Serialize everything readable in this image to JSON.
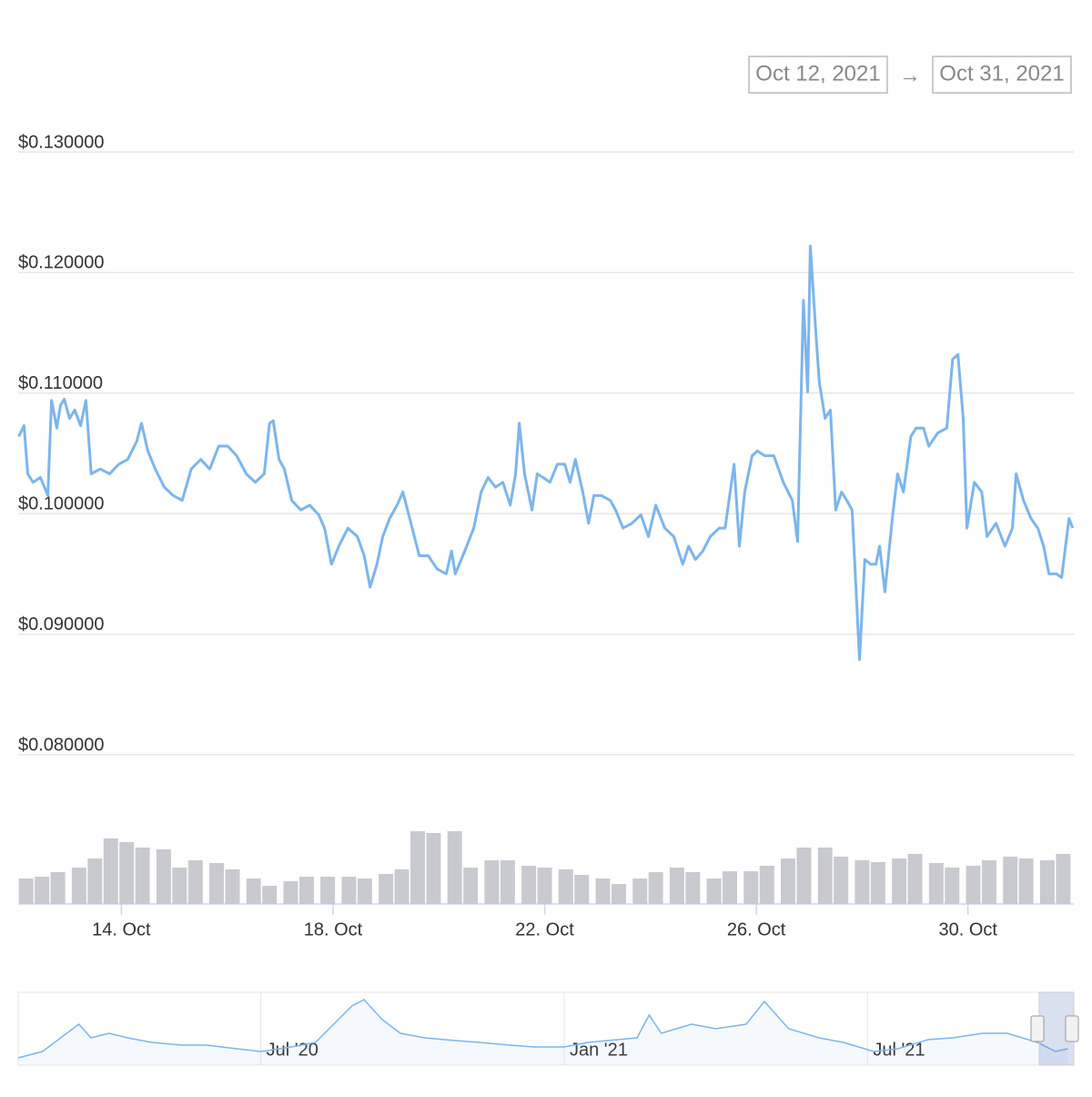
{
  "range": {
    "from": "Oct 12, 2021",
    "separator": "→",
    "to": "Oct 31, 2021"
  },
  "chart_data": [
    {
      "type": "line",
      "color": "#7cb5ec",
      "grid": true,
      "xlim": [
        12.05,
        32
      ],
      "ylim": [
        0.08,
        0.13
      ],
      "yticks": [
        {
          "value": 0.08,
          "label": "$0.080000"
        },
        {
          "value": 0.09,
          "label": "$0.090000"
        },
        {
          "value": 0.1,
          "label": "$0.100000"
        },
        {
          "value": 0.11,
          "label": "$0.110000"
        },
        {
          "value": 0.12,
          "label": "$0.120000"
        },
        {
          "value": 0.13,
          "label": "$0.130000"
        }
      ],
      "x": [
        12.06,
        12.16,
        12.23,
        12.33,
        12.47,
        12.61,
        12.68,
        12.78,
        12.85,
        12.92,
        13.02,
        13.12,
        13.23,
        13.33,
        13.43,
        13.6,
        13.78,
        13.95,
        14.12,
        14.29,
        14.38,
        14.5,
        14.64,
        14.81,
        14.98,
        15.15,
        15.32,
        15.5,
        15.67,
        15.84,
        16.01,
        16.18,
        16.36,
        16.53,
        16.7,
        16.8,
        16.87,
        16.98,
        17.08,
        17.22,
        17.39,
        17.56,
        17.73,
        17.84,
        17.97,
        18.11,
        18.28,
        18.46,
        18.59,
        18.7,
        18.83,
        18.94,
        19.07,
        19.21,
        19.32,
        19.45,
        19.63,
        19.8,
        19.97,
        20.14,
        20.24,
        20.31,
        20.49,
        20.66,
        20.8,
        20.93,
        21.07,
        21.21,
        21.35,
        21.45,
        21.52,
        21.62,
        21.76,
        21.86,
        21.97,
        22.1,
        22.24,
        22.38,
        22.48,
        22.58,
        22.72,
        22.83,
        22.93,
        23.07,
        23.24,
        23.34,
        23.48,
        23.65,
        23.82,
        23.96,
        24.1,
        24.27,
        24.44,
        24.61,
        24.72,
        24.85,
        24.99,
        25.13,
        25.3,
        25.41,
        25.58,
        25.68,
        25.78,
        25.92,
        26.02,
        26.16,
        26.33,
        26.51,
        26.68,
        26.78,
        26.89,
        26.97,
        27.02,
        27.13,
        27.19,
        27.3,
        27.4,
        27.5,
        27.61,
        27.71,
        27.81,
        27.95,
        28.05,
        28.16,
        28.26,
        28.33,
        28.43,
        28.57,
        28.67,
        28.78,
        28.92,
        29.02,
        29.16,
        29.26,
        29.43,
        29.6,
        29.71,
        29.81,
        29.91,
        29.98,
        30.12,
        30.26,
        30.36,
        30.53,
        30.7,
        30.84,
        30.91,
        31.05,
        31.19,
        31.32,
        31.43,
        31.53,
        31.67,
        31.77,
        31.91,
        31.98
      ],
      "values": [
        0.1064,
        0.1073,
        0.1033,
        0.1026,
        0.103,
        0.1015,
        0.1094,
        0.1071,
        0.109,
        0.1095,
        0.1079,
        0.1086,
        0.1073,
        0.1094,
        0.1033,
        0.1037,
        0.1033,
        0.1041,
        0.1045,
        0.106,
        0.1075,
        0.1052,
        0.1037,
        0.1022,
        0.1015,
        0.1011,
        0.1037,
        0.1045,
        0.1037,
        0.1056,
        0.1056,
        0.1048,
        0.1033,
        0.1026,
        0.1033,
        0.1075,
        0.1077,
        0.1045,
        0.1037,
        0.1011,
        0.1003,
        0.1007,
        0.0999,
        0.0988,
        0.0958,
        0.0973,
        0.0988,
        0.0981,
        0.0965,
        0.0939,
        0.0958,
        0.0981,
        0.0996,
        0.1007,
        0.1018,
        0.0996,
        0.0965,
        0.0965,
        0.0954,
        0.095,
        0.0969,
        0.095,
        0.0969,
        0.0988,
        0.1018,
        0.103,
        0.1022,
        0.1026,
        0.1007,
        0.1033,
        0.1075,
        0.1033,
        0.1003,
        0.1033,
        0.103,
        0.1026,
        0.1041,
        0.1041,
        0.1026,
        0.1045,
        0.1018,
        0.0992,
        0.1015,
        0.1015,
        0.1011,
        0.1003,
        0.0988,
        0.0992,
        0.0999,
        0.0981,
        0.1007,
        0.0988,
        0.0981,
        0.0958,
        0.0973,
        0.0962,
        0.0969,
        0.0981,
        0.0988,
        0.0988,
        0.1041,
        0.0973,
        0.1018,
        0.1048,
        0.1052,
        0.1048,
        0.1048,
        0.1026,
        0.1011,
        0.0977,
        0.1177,
        0.1101,
        0.1222,
        0.1147,
        0.1109,
        0.1079,
        0.1086,
        0.1003,
        0.1018,
        0.1011,
        0.1003,
        0.0879,
        0.0962,
        0.0958,
        0.0958,
        0.0973,
        0.0935,
        0.0996,
        0.1033,
        0.1018,
        0.1064,
        0.1071,
        0.1071,
        0.1056,
        0.1067,
        0.1071,
        0.1128,
        0.1132,
        0.1079,
        0.0988,
        0.1026,
        0.1018,
        0.0981,
        0.0992,
        0.0973,
        0.0988,
        0.1033,
        0.1011,
        0.0996,
        0.0988,
        0.0973,
        0.095,
        0.095,
        0.0947,
        0.0996,
        0.0988
      ]
    },
    {
      "type": "bar",
      "color": "#c8cad0",
      "xlim": [
        12.05,
        32
      ],
      "xticks": [
        {
          "value": 14,
          "label": "14. Oct"
        },
        {
          "value": 18,
          "label": "18. Oct"
        },
        {
          "value": 22,
          "label": "22. Oct"
        },
        {
          "value": 26,
          "label": "26. Oct"
        },
        {
          "value": 30,
          "label": "30. Oct"
        }
      ],
      "x": [
        12.2,
        12.5,
        12.8,
        13.2,
        13.5,
        13.8,
        14.1,
        14.4,
        14.8,
        15.1,
        15.4,
        15.8,
        16.1,
        16.5,
        16.8,
        17.2,
        17.5,
        17.9,
        18.3,
        18.6,
        19.0,
        19.3,
        19.6,
        19.9,
        20.3,
        20.6,
        21.0,
        21.3,
        21.7,
        22.0,
        22.4,
        22.7,
        23.1,
        23.4,
        23.8,
        24.1,
        24.5,
        24.8,
        25.2,
        25.5,
        25.9,
        26.2,
        26.6,
        26.9,
        27.3,
        27.6,
        28.0,
        28.3,
        28.7,
        29.0,
        29.4,
        29.7,
        30.1,
        30.4,
        30.8,
        31.1,
        31.5,
        31.8
      ],
      "values": [
        28,
        30,
        35,
        40,
        50,
        72,
        68,
        62,
        60,
        40,
        48,
        45,
        38,
        28,
        20,
        25,
        30,
        30,
        30,
        28,
        33,
        38,
        80,
        78,
        80,
        40,
        48,
        48,
        42,
        40,
        38,
        32,
        28,
        22,
        28,
        35,
        40,
        35,
        28,
        36,
        36,
        42,
        50,
        62,
        62,
        52,
        48,
        46,
        50,
        55,
        45,
        40,
        42,
        48,
        52,
        50,
        48,
        55
      ]
    },
    {
      "type": "area",
      "color": "#7cb5ec",
      "xlim": [
        2020.1,
        2021.84
      ],
      "xticks": [
        {
          "value": 2020.5,
          "label": "Jul '20"
        },
        {
          "value": 2021.0,
          "label": "Jan '21"
        },
        {
          "value": 2021.5,
          "label": "Jul '21"
        }
      ],
      "x": [
        2020.1,
        2020.14,
        2020.18,
        2020.2,
        2020.22,
        2020.25,
        2020.28,
        2020.32,
        2020.37,
        2020.41,
        2020.46,
        2020.5,
        2020.55,
        2020.59,
        2020.62,
        2020.65,
        2020.67,
        2020.7,
        2020.73,
        2020.77,
        2020.82,
        2020.86,
        2020.91,
        2020.95,
        2021.0,
        2021.04,
        2021.12,
        2021.14,
        2021.16,
        2021.21,
        2021.25,
        2021.3,
        2021.33,
        2021.37,
        2021.42,
        2021.46,
        2021.51,
        2021.55,
        2021.6,
        2021.64,
        2021.69,
        2021.73,
        2021.78,
        2021.81,
        2021.83
      ],
      "values": [
        8,
        15,
        35,
        45,
        30,
        35,
        30,
        25,
        22,
        22,
        18,
        15,
        20,
        25,
        45,
        65,
        72,
        50,
        35,
        30,
        27,
        25,
        22,
        20,
        20,
        25,
        30,
        55,
        35,
        45,
        40,
        45,
        70,
        40,
        30,
        25,
        15,
        18,
        28,
        30,
        35,
        35,
        25,
        15,
        18
      ]
    }
  ]
}
